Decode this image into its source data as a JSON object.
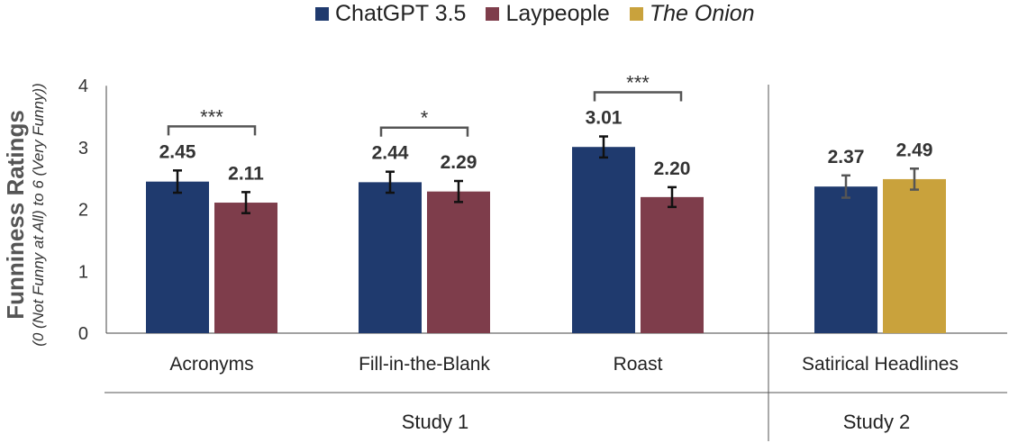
{
  "legend": [
    {
      "label": "ChatGPT 3.5",
      "color": "#1F3A6E",
      "italic": false
    },
    {
      "label": "Laypeople",
      "color": "#7E3D4B",
      "italic": false
    },
    {
      "label": "The Onion",
      "color": "#C9A23C",
      "italic": true
    }
  ],
  "ylabel": {
    "main": "Funniness Ratings",
    "sub": "(0 (Not Funny at All) to 6 (Very Funny))"
  },
  "chart_data": {
    "type": "bar",
    "ylim": [
      0,
      4
    ],
    "yticks": [
      "0",
      "1",
      "2",
      "3",
      "4"
    ],
    "grid": false,
    "legend_position": "top",
    "groups": [
      {
        "category": "Acronyms",
        "study": "Study 1",
        "bars": [
          {
            "series": "ChatGPT 3.5",
            "value": 2.45,
            "label": "2.45",
            "err": 0.18
          },
          {
            "series": "Laypeople",
            "value": 2.11,
            "label": "2.11",
            "err": 0.17
          }
        ],
        "significance": "***"
      },
      {
        "category": "Fill-in-the-Blank",
        "study": "Study 1",
        "bars": [
          {
            "series": "ChatGPT 3.5",
            "value": 2.44,
            "label": "2.44",
            "err": 0.17
          },
          {
            "series": "Laypeople",
            "value": 2.29,
            "label": "2.29",
            "err": 0.17
          }
        ],
        "significance": "*"
      },
      {
        "category": "Roast",
        "study": "Study 1",
        "bars": [
          {
            "series": "ChatGPT 3.5",
            "value": 3.01,
            "label": "3.01",
            "err": 0.17
          },
          {
            "series": "Laypeople",
            "value": 2.2,
            "label": "2.20",
            "err": 0.16
          }
        ],
        "significance": "***"
      },
      {
        "category": "Satirical Headlines",
        "study": "Study 2",
        "bars": [
          {
            "series": "ChatGPT 3.5",
            "value": 2.37,
            "label": "2.37",
            "err": 0.18
          },
          {
            "series": "The Onion",
            "value": 2.49,
            "label": "2.49",
            "err": 0.17
          }
        ],
        "significance": ""
      }
    ],
    "studies": [
      "Study 1",
      "Study 2"
    ]
  }
}
